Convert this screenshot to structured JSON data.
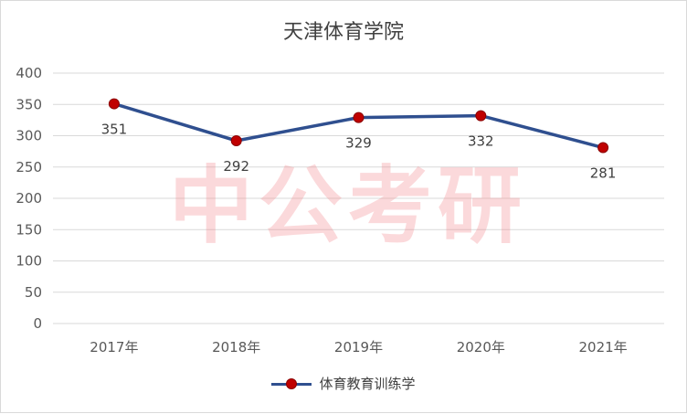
{
  "chart_data": {
    "type": "line",
    "title": "天津体育学院",
    "categories": [
      "2017年",
      "2018年",
      "2019年",
      "2020年",
      "2021年"
    ],
    "series": [
      {
        "name": "体育教育训练学",
        "values": [
          351,
          292,
          329,
          332,
          281
        ]
      }
    ],
    "ylim": [
      0,
      400
    ],
    "yticks": [
      0,
      50,
      100,
      150,
      200,
      250,
      300,
      350,
      400
    ],
    "grid": true,
    "legend": "bottom",
    "data_labels": [
      "351",
      "292",
      "329",
      "332",
      "281"
    ],
    "colors": {
      "line": "#2f4f8f",
      "marker": "#c00000"
    }
  },
  "watermark": "中公考研"
}
